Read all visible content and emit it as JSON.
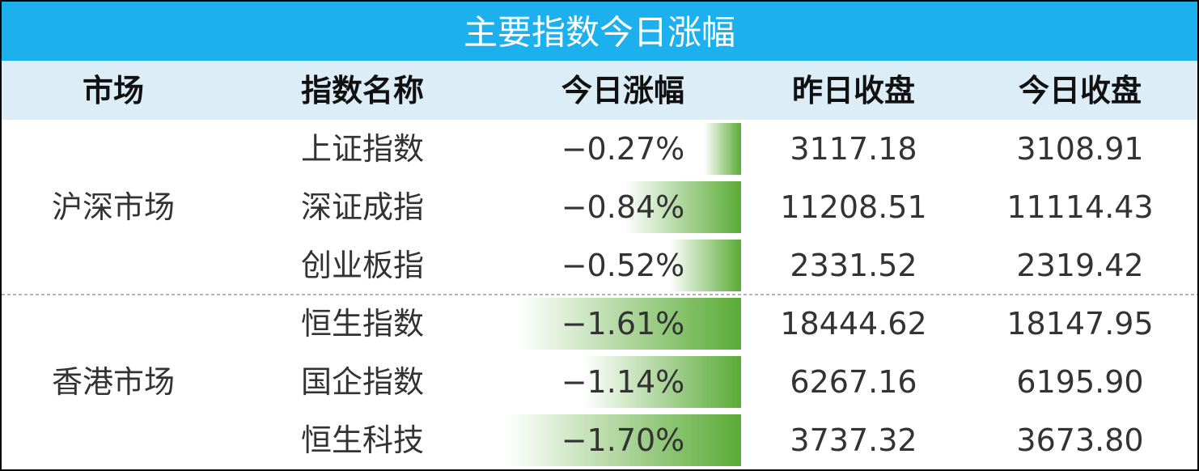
{
  "title": "主要指数今日涨幅",
  "table": {
    "headers": [
      "市场",
      "指数名称",
      "今日涨幅",
      "昨日收盘",
      "今日收盘"
    ],
    "groups": [
      {
        "market": "沪深市场",
        "rows": [
          {
            "name": "上证指数",
            "change": {
              "value": -0.27,
              "label": "−0.27%"
            },
            "prev": "3117.18",
            "today": "3108.91"
          },
          {
            "name": "深证成指",
            "change": {
              "value": -0.84,
              "label": "−0.84%"
            },
            "prev": "11208.51",
            "today": "11114.43"
          },
          {
            "name": "创业板指",
            "change": {
              "value": -0.52,
              "label": "−0.52%"
            },
            "prev": "2331.52",
            "today": "2319.42"
          }
        ]
      },
      {
        "market": "香港市场",
        "rows": [
          {
            "name": "恒生指数",
            "change": {
              "value": -1.61,
              "label": "−1.61%"
            },
            "prev": "18444.62",
            "today": "18147.95"
          },
          {
            "name": "国企指数",
            "change": {
              "value": -1.14,
              "label": "−1.14%"
            },
            "prev": "6267.16",
            "today": "6195.90"
          },
          {
            "name": "恒生科技",
            "change": {
              "value": -1.7,
              "label": "−1.70%"
            },
            "prev": "3737.32",
            "today": "3673.80"
          }
        ]
      }
    ]
  }
}
